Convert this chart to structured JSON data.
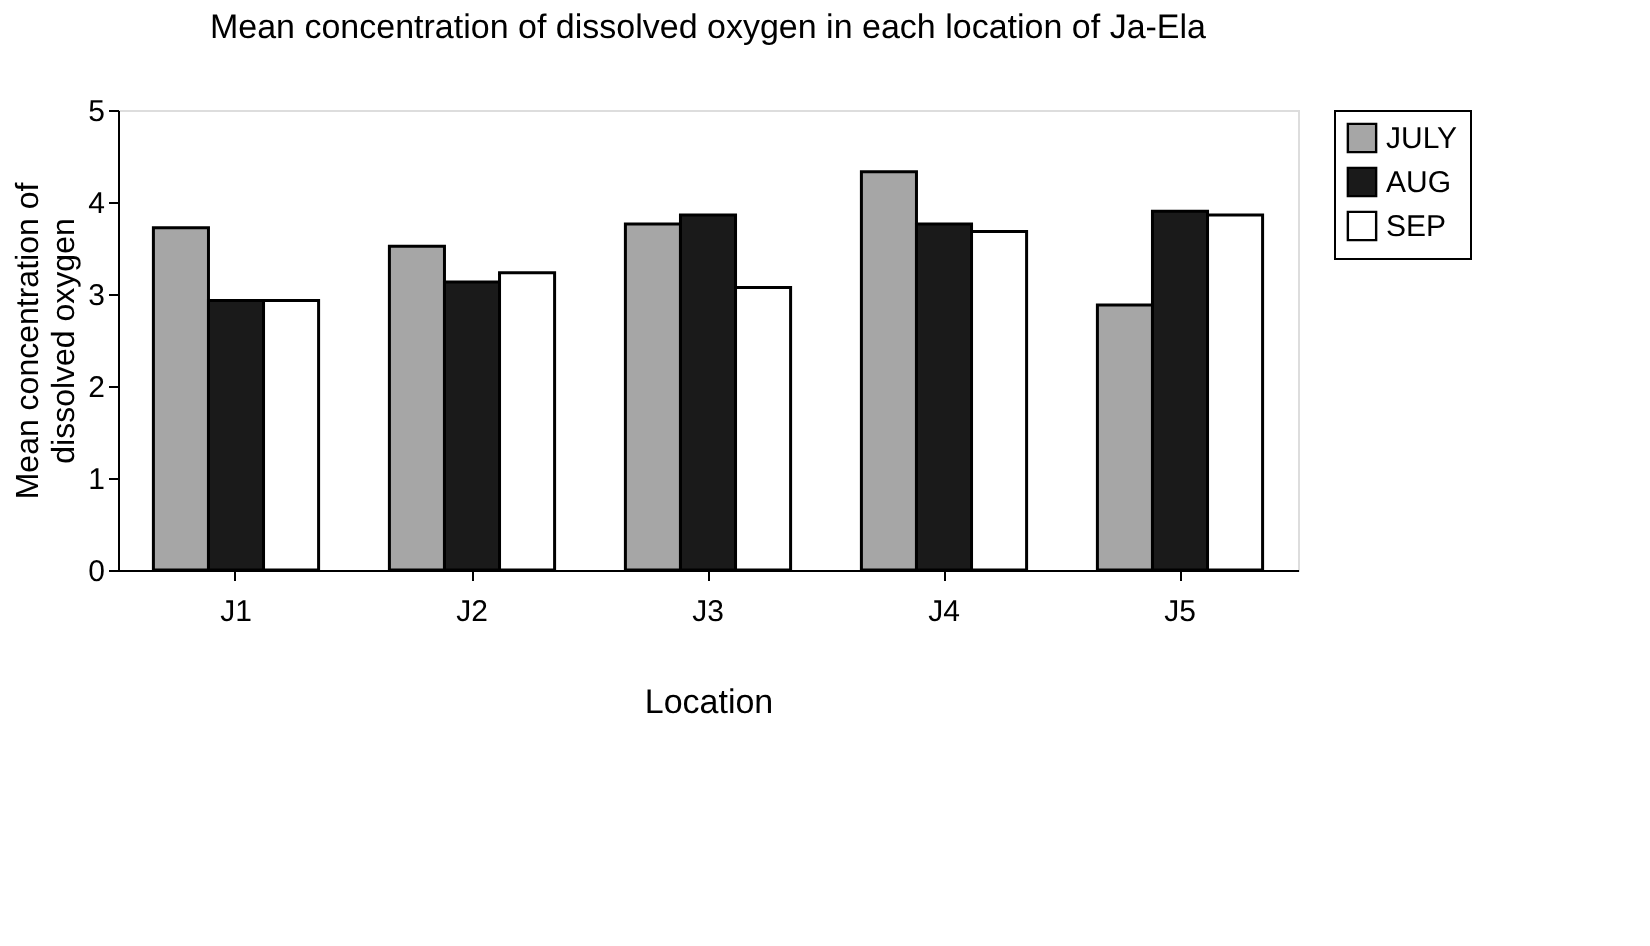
{
  "chart_data": {
    "type": "bar",
    "title": "Mean concentration of dissolved oxygen in each location of Ja-Ela",
    "xlabel": "Location",
    "ylabel": "Mean concentration of dissolved oxygen",
    "categories": [
      "J1",
      "J2",
      "J3",
      "J4",
      "J5"
    ],
    "series": [
      {
        "name": "JULY",
        "color": "#a6a6a6",
        "values": [
          3.72,
          3.52,
          3.76,
          4.33,
          2.88
        ]
      },
      {
        "name": "AUG",
        "color": "#1a1a1a",
        "values": [
          2.93,
          3.13,
          3.86,
          3.76,
          3.9
        ]
      },
      {
        "name": "SEP",
        "color": "#ffffff",
        "values": [
          2.93,
          3.23,
          3.07,
          3.68,
          3.86
        ]
      }
    ],
    "ylim": [
      0,
      5
    ],
    "yticks": [
      0,
      1,
      2,
      3,
      4,
      5
    ],
    "grid": false,
    "legend": "right"
  }
}
